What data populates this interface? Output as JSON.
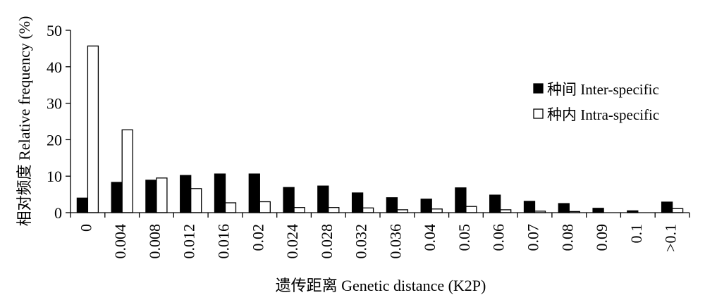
{
  "chart_data": {
    "type": "bar",
    "xlabel": "遗传距离 Genetic distance (K2P)",
    "ylabel": "相对频度 Relative frequency (%)",
    "ylim": [
      0,
      50
    ],
    "yticks": [
      0,
      10,
      20,
      30,
      40,
      50
    ],
    "categories": [
      "0",
      "0.004",
      "0.008",
      "0.012",
      "0.016",
      "0.02",
      "0.024",
      "0.028",
      "0.032",
      "0.036",
      "0.04",
      "0.05",
      "0.06",
      "0.07",
      "0.08",
      "0.09",
      "0.1",
      ">0.1"
    ],
    "series": [
      {
        "name": "种间 Inter-specific",
        "fill": "#000000",
        "stroke": "#000000",
        "values": [
          4.0,
          8.3,
          8.9,
          10.2,
          10.6,
          10.6,
          6.9,
          7.3,
          5.4,
          4.1,
          3.7,
          6.8,
          4.8,
          3.1,
          2.5,
          1.2,
          0.5,
          2.9
        ]
      },
      {
        "name": "种内 Intra-specific",
        "fill": "#ffffff",
        "stroke": "#000000",
        "values": [
          45.7,
          22.7,
          9.5,
          6.6,
          2.7,
          3.0,
          1.4,
          1.4,
          1.3,
          0.8,
          1.0,
          1.7,
          0.8,
          0.4,
          0.3,
          0.0,
          0.0,
          1.1
        ]
      }
    ],
    "legend": "right",
    "grid": false,
    "axis_color": "#000000"
  }
}
